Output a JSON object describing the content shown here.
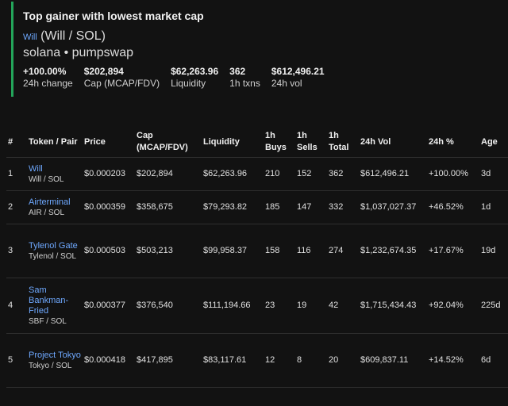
{
  "card": {
    "title": "Top gainer with lowest market cap",
    "token": "Will",
    "pair": "(Will / SOL)",
    "chain": "solana • pumpswap",
    "stats": [
      {
        "value": "+100.00%",
        "label": "24h change"
      },
      {
        "value": "$202,894",
        "label": "Cap (MCAP/FDV)"
      },
      {
        "value": "$62,263.96",
        "label": "Liquidity"
      },
      {
        "value": "362",
        "label": "1h txns"
      },
      {
        "value": "$612,496.21",
        "label": "24h vol"
      }
    ]
  },
  "table": {
    "headers": [
      "#",
      "Token / Pair",
      "Price",
      "Cap (MCAP/FDV)",
      "Liquidity",
      "1h Buys",
      "1h Sells",
      "1h Total",
      "24h Vol",
      "24h %",
      "Age"
    ],
    "rows": [
      {
        "n": "1",
        "token": "Will",
        "pair": "Will / SOL",
        "price": "$0.000203",
        "cap": "$202,894",
        "liq": "$62,263.96",
        "buys": "210",
        "sells": "152",
        "total": "362",
        "vol": "$612,496.21",
        "pct": "+100.00%",
        "age": "3d"
      },
      {
        "n": "2",
        "token": "Airterminal",
        "pair": "AIR / SOL",
        "price": "$0.000359",
        "cap": "$358,675",
        "liq": "$79,293.82",
        "buys": "185",
        "sells": "147",
        "total": "332",
        "vol": "$1,037,027.37",
        "pct": "+46.52%",
        "age": "1d"
      },
      {
        "n": "3",
        "token": "Tylenol Gate",
        "pair": "Tylenol / SOL",
        "price": "$0.000503",
        "cap": "$503,213",
        "liq": "$99,958.37",
        "buys": "158",
        "sells": "116",
        "total": "274",
        "vol": "$1,232,674.35",
        "pct": "+17.67%",
        "age": "19d"
      },
      {
        "n": "4",
        "token": "Sam Bankman-Fried",
        "pair": "SBF / SOL",
        "price": "$0.000377",
        "cap": "$376,540",
        "liq": "$111,194.66",
        "buys": "23",
        "sells": "19",
        "total": "42",
        "vol": "$1,715,434.43",
        "pct": "+92.04%",
        "age": "225d"
      },
      {
        "n": "5",
        "token": "Project Tokyo",
        "pair": "Tokyo / SOL",
        "price": "$0.000418",
        "cap": "$417,895",
        "liq": "$83,117.61",
        "buys": "12",
        "sells": "8",
        "total": "20",
        "vol": "$609,837.11",
        "pct": "+14.52%",
        "age": "6d"
      }
    ]
  },
  "colors": {
    "accent": "#23a55a",
    "link": "#6ea8fe",
    "background": "#121212"
  }
}
